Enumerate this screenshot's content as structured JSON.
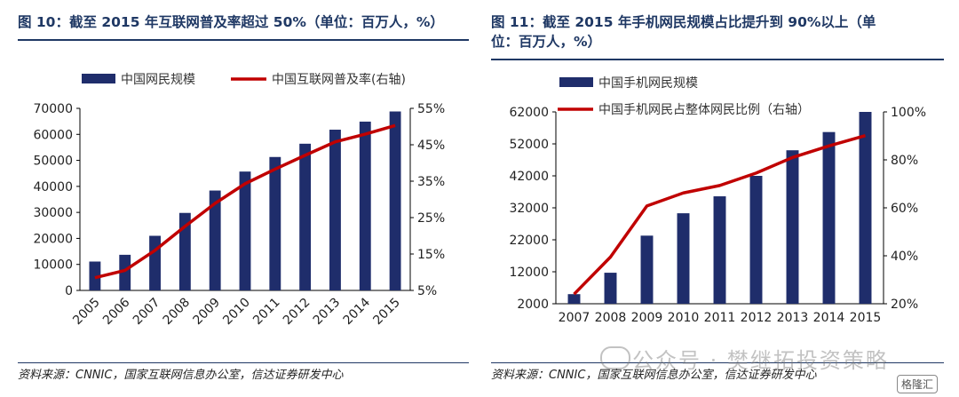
{
  "left": {
    "title": "图 10：截至 2015 年互联网普及率超过 50%（单位：百万人，%）",
    "source": "资料来源：CNNIC，国家互联网信息办公室，信达证券研发中心"
  },
  "right": {
    "title_line1": "图 11：截至 2015 年手机网民规模占比提升到 90%以上（单",
    "title_line2": "位：百万人，%）",
    "source": "资料来源：CNNIC，国家互联网信息办公室，信达证券研发中心"
  },
  "watermark": {
    "text": "公众号 · 樊继拓投资策略",
    "logo": "格隆汇"
  },
  "colors": {
    "bar": "#1f2d6b",
    "line": "#c00000",
    "title": "#1f3864"
  },
  "chart_data": [
    {
      "type": "bar",
      "categories": [
        "2005",
        "2006",
        "2007",
        "2008",
        "2009",
        "2010",
        "2011",
        "2012",
        "2013",
        "2014",
        "2015"
      ],
      "series": [
        {
          "name": "中国网民规模",
          "type": "bar",
          "axis": "left",
          "values": [
            11100,
            13700,
            21000,
            29800,
            38400,
            45700,
            51300,
            56400,
            61800,
            64900,
            68800
          ]
        },
        {
          "name": "中国互联网普及率(右轴)",
          "type": "line",
          "axis": "right",
          "values": [
            8.5,
            10.5,
            16.0,
            22.6,
            28.9,
            34.3,
            38.3,
            42.1,
            45.8,
            47.9,
            50.3
          ]
        }
      ],
      "ylim": [
        0,
        70000
      ],
      "yticks": [
        "0",
        "10000",
        "20000",
        "30000",
        "40000",
        "50000",
        "60000",
        "70000"
      ],
      "y2lim": [
        5,
        55
      ],
      "y2ticks": [
        "5%",
        "15%",
        "25%",
        "35%",
        "45%",
        "55%"
      ],
      "legend_position": "top"
    },
    {
      "type": "bar",
      "categories": [
        "2007",
        "2008",
        "2009",
        "2010",
        "2011",
        "2012",
        "2013",
        "2014",
        "2015"
      ],
      "series": [
        {
          "name": "中国手机网民规模",
          "type": "bar",
          "axis": "left",
          "values": [
            5000,
            11700,
            23300,
            30300,
            35600,
            42000,
            50000,
            55700,
            62000
          ]
        },
        {
          "name": "中国手机网民占整体网民比例（右轴）",
          "type": "line",
          "axis": "right",
          "values": [
            24,
            39.5,
            60.8,
            66.2,
            69.3,
            74.5,
            81.0,
            85.8,
            90.1
          ]
        }
      ],
      "ylim": [
        2000,
        62000
      ],
      "yticks": [
        "2000",
        "12000",
        "22000",
        "32000",
        "42000",
        "52000",
        "62000"
      ],
      "y2lim": [
        20,
        100
      ],
      "y2ticks": [
        "20%",
        "40%",
        "60%",
        "80%",
        "100%"
      ],
      "legend_position": "top-left"
    }
  ]
}
